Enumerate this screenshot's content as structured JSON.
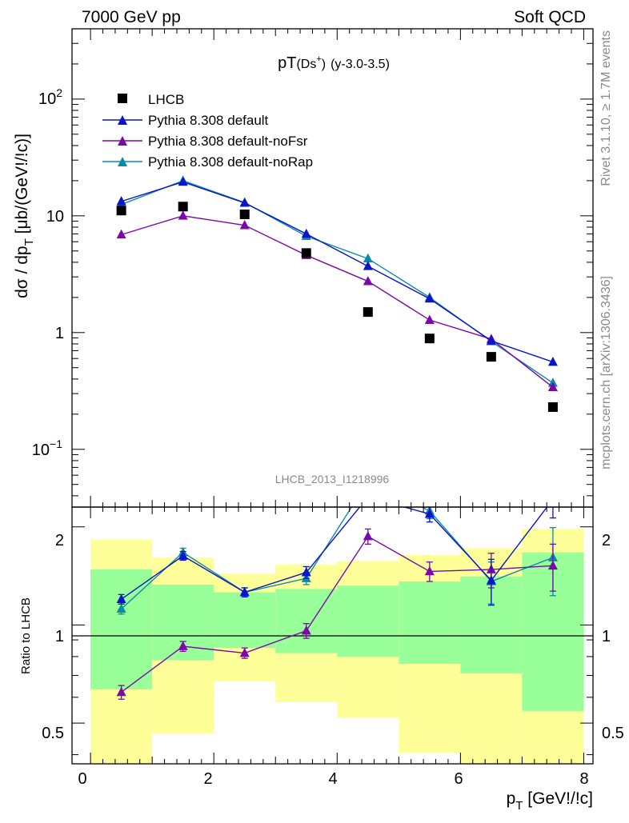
{
  "header": {
    "left": "7000 GeV pp",
    "right": "Soft QCD"
  },
  "plot_title": {
    "main": "pT",
    "particle": "(Ds",
    "sup": "+",
    "close": ")",
    "range": "(y-3.0-3.5)"
  },
  "side_labels": {
    "rivet": "Rivet 3.1.10, ≥ 1.7M events",
    "mcplots": "mcplots.cern.ch [arXiv:1306.3436]"
  },
  "watermark": "LHCB_2013_I1218996",
  "upper_ylabel": {
    "main": "dσ / dp",
    "sub": "T",
    "unit": " [μb/(GeV!/!c)]"
  },
  "lower_ylabel": "Ratio to LHCB",
  "xlabel": {
    "main": "p",
    "sub": "T",
    "unit": " [GeV!/!c]"
  },
  "upper_yticks": {
    "t1": "10",
    "t1_exp": "−1",
    "t2": "1",
    "t3": "10",
    "t4": "10",
    "t4_exp": "2"
  },
  "lower_yticks": [
    "0.5",
    "1",
    "2"
  ],
  "xticks": [
    "0",
    "2",
    "4",
    "6",
    "8"
  ],
  "colors": {
    "data": "#000000",
    "default": "#0a14c8",
    "noFsr": "#7a0aa8",
    "noRap": "#0a8aa8",
    "band_green": "#99ff99",
    "band_yellow": "#ffff99"
  },
  "chart_data": {
    "type": "scatter",
    "title": "pT(Ds+) (y-3.0-3.5)",
    "xlabel": "pT [GeV!/!c]",
    "ylabel": "dσ / dpT [μb/(GeV!/!c)]",
    "xlim": [
      -0.3,
      8.15
    ],
    "ylim": [
      0.032,
      400
    ],
    "y_scale": "log",
    "ratio_ylabel": "Ratio to LHCB",
    "ratio_ylim": [
      0.375,
      2.3
    ],
    "ratio_scale": "log",
    "legend_position": "top-left",
    "x": [
      0.5,
      1.5,
      2.5,
      3.5,
      4.5,
      5.5,
      6.5,
      7.5
    ],
    "series": [
      {
        "name": "LHCB",
        "marker": "square",
        "values": [
          11.1,
          12.0,
          10.3,
          4.8,
          1.5,
          0.89,
          0.62,
          0.23
        ],
        "band_inner_lo": [
          0.635,
          0.78,
          0.85,
          0.82,
          0.8,
          0.76,
          0.71,
          0.545
        ],
        "band_inner_hi": [
          1.48,
          1.33,
          1.26,
          1.29,
          1.32,
          1.36,
          1.41,
          1.67
        ],
        "band_outer_lo": [
          0.36,
          0.465,
          0.67,
          0.58,
          0.52,
          0.405,
          0.36,
          0.36
        ],
        "band_outer_hi": [
          1.83,
          1.61,
          1.44,
          1.53,
          1.57,
          1.64,
          1.72,
          1.97
        ]
      },
      {
        "name": "Pythia 8.308 default",
        "marker": "triangle",
        "values": [
          13.3,
          19.5,
          12.9,
          7.0,
          3.7,
          1.95,
          0.85,
          0.56
        ],
        "ratio": [
          1.2,
          1.63,
          1.26,
          1.45,
          2.47,
          2.19,
          1.37,
          2.43
        ],
        "ratio_err": [
          0.04,
          0.05,
          0.04,
          0.06,
          0.12,
          0.12,
          0.22,
          0.3
        ]
      },
      {
        "name": "Pythia 8.308 default-noFsr",
        "marker": "triangle",
        "values": [
          6.9,
          10.0,
          8.3,
          4.6,
          2.75,
          1.28,
          0.88,
          0.34
        ],
        "ratio": [
          0.622,
          0.86,
          0.82,
          0.96,
          1.87,
          1.46,
          1.48,
          1.52
        ],
        "ratio_err": [
          0.03,
          0.03,
          0.03,
          0.05,
          0.1,
          0.1,
          0.18,
          0.25
        ]
      },
      {
        "name": "Pythia 8.308 default-noRap",
        "marker": "triangle",
        "values": [
          12.5,
          20.0,
          13.0,
          6.7,
          4.3,
          2.0,
          0.84,
          0.37
        ],
        "ratio": [
          1.12,
          1.67,
          1.26,
          1.39,
          2.76,
          2.24,
          1.36,
          1.61
        ],
        "ratio_err": [
          0.04,
          0.05,
          0.04,
          0.06,
          0.15,
          0.12,
          0.2,
          0.38
        ]
      }
    ]
  }
}
